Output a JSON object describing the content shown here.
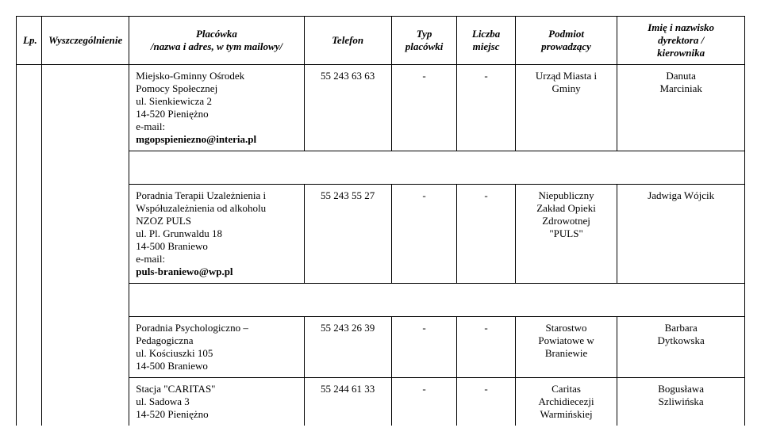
{
  "header": {
    "lp": "Lp.",
    "wysz": "Wyszczególnienie",
    "plac_line1": "Placówka",
    "plac_line2": "/nazwa i adres, w tym mailowy/",
    "tel": "Telefon",
    "typ_line1": "Typ",
    "typ_line2": "placówki",
    "liczba_line1": "Liczba",
    "liczba_line2": "miejsc",
    "podmiot_line1": "Podmiot",
    "podmiot_line2": "prowadzący",
    "imie_line1": "Imię i nazwisko",
    "imie_line2": "dyrektora /",
    "imie_line3": "kierownika"
  },
  "row1": {
    "plac_line1": "Miejsko-Gminny Ośrodek",
    "plac_line2": "Pomocy Społecznej",
    "plac_line3": "ul. Sienkiewicza 2",
    "plac_line4": "14-520 Pieniężno",
    "plac_line5": "e-mail:",
    "plac_line6": "mgopspieniezno@interia.pl",
    "tel": "55 243 63 63",
    "typ": "-",
    "liczba": "-",
    "podmiot_line1": "Urząd Miasta i",
    "podmiot_line2": "Gminy",
    "imie_line1": "Danuta",
    "imie_line2": "Marciniak"
  },
  "row2": {
    "plac_line1": "Poradnia Terapii Uzależnienia i",
    "plac_line2": "Współuzależnienia od alkoholu",
    "plac_line3": "NZOZ PULS",
    "plac_line4": "ul. Pl. Grunwaldu 18",
    "plac_line5": "14-500 Braniewo",
    "plac_line6": "e-mail:",
    "plac_line7": "puls-braniewo@wp.pl",
    "tel": "55 243 55 27",
    "typ": "-",
    "liczba": "-",
    "podmiot_line1": "Niepubliczny",
    "podmiot_line2": "Zakład Opieki",
    "podmiot_line3": "Zdrowotnej",
    "podmiot_line4": "\"PULS\"",
    "imie": "Jadwiga Wójcik"
  },
  "row3": {
    "plac_line1": "Poradnia Psychologiczno –",
    "plac_line2": "Pedagogiczna",
    "plac_line3": "ul. Kościuszki 105",
    "plac_line4": "14-500 Braniewo",
    "tel": "55 243 26 39",
    "typ": "-",
    "liczba": "-",
    "podmiot_line1": "Starostwo",
    "podmiot_line2": "Powiatowe w",
    "podmiot_line3": "Braniewie",
    "imie_line1": "Barbara",
    "imie_line2": "Dytkowska"
  },
  "row4": {
    "plac_line1": "Stacja \"CARITAS\"",
    "plac_line2": "ul. Sadowa 3",
    "plac_line3": "14-520 Pieniężno",
    "tel": "55 244 61 33",
    "typ": "-",
    "liczba": "-",
    "podmiot_line1": "Caritas",
    "podmiot_line2": "Archidiecezji",
    "podmiot_line3": "Warmińskiej",
    "imie_line1": "Bogusława",
    "imie_line2": "Szliwińska"
  }
}
